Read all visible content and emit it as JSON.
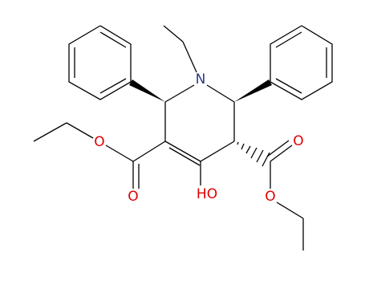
{
  "atoms": [
    {
      "label": "N"
    },
    {
      "label": "O"
    },
    {
      "label": "O"
    },
    {
      "label": "HO"
    },
    {
      "label": "O"
    },
    {
      "label": "O"
    }
  ]
}
